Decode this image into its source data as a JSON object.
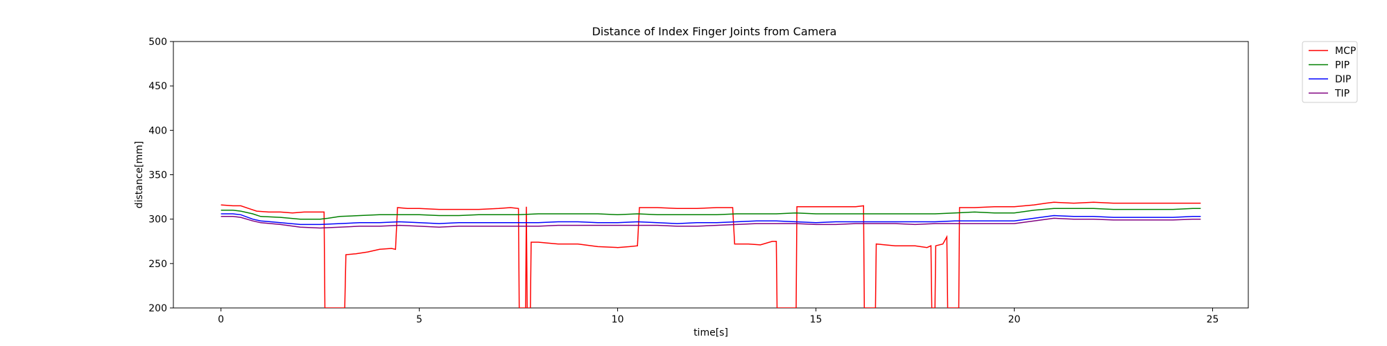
{
  "chart_data": {
    "type": "line",
    "title": "Distance of Index Finger Joints from Camera",
    "xlabel": "time[s]",
    "ylabel": "distance[mm]",
    "xlim": [
      -1.2,
      25.9
    ],
    "ylim": [
      200,
      500
    ],
    "xticks": [
      0,
      5,
      10,
      15,
      20,
      25
    ],
    "yticks": [
      200,
      250,
      300,
      350,
      400,
      450,
      500
    ],
    "grid": false,
    "legend_position": "outside-top-right",
    "series": [
      {
        "name": "MCP",
        "color": "#ff0000",
        "points": [
          [
            0,
            316
          ],
          [
            0.3,
            315
          ],
          [
            0.5,
            315
          ],
          [
            0.7,
            312
          ],
          [
            0.9,
            309
          ],
          [
            1.2,
            308
          ],
          [
            1.5,
            308
          ],
          [
            1.8,
            307
          ],
          [
            2.1,
            308
          ],
          [
            2.4,
            308
          ],
          [
            2.6,
            308
          ],
          [
            2.62,
            200
          ],
          [
            3.12,
            200
          ],
          [
            3.15,
            260
          ],
          [
            3.4,
            261
          ],
          [
            3.7,
            263
          ],
          [
            4.0,
            266
          ],
          [
            4.3,
            267
          ],
          [
            4.4,
            266
          ],
          [
            4.45,
            313
          ],
          [
            4.7,
            312
          ],
          [
            5.0,
            312
          ],
          [
            5.5,
            311
          ],
          [
            6.0,
            311
          ],
          [
            6.5,
            311
          ],
          [
            7.0,
            312
          ],
          [
            7.3,
            313
          ],
          [
            7.5,
            312
          ],
          [
            7.52,
            200
          ],
          [
            7.68,
            200
          ],
          [
            7.7,
            314
          ],
          [
            7.72,
            200
          ],
          [
            7.8,
            200
          ],
          [
            7.82,
            274
          ],
          [
            8.0,
            274
          ],
          [
            8.5,
            272
          ],
          [
            9.0,
            272
          ],
          [
            9.5,
            269
          ],
          [
            10.0,
            268
          ],
          [
            10.3,
            269
          ],
          [
            10.5,
            270
          ],
          [
            10.55,
            313
          ],
          [
            11.0,
            313
          ],
          [
            11.5,
            312
          ],
          [
            12.0,
            312
          ],
          [
            12.5,
            313
          ],
          [
            12.9,
            313
          ],
          [
            12.95,
            272
          ],
          [
            13.3,
            272
          ],
          [
            13.6,
            271
          ],
          [
            13.9,
            275
          ],
          [
            14.0,
            275
          ],
          [
            14.02,
            200
          ],
          [
            14.5,
            200
          ],
          [
            14.52,
            314
          ],
          [
            15.0,
            314
          ],
          [
            15.5,
            314
          ],
          [
            16.0,
            314
          ],
          [
            16.2,
            315
          ],
          [
            16.22,
            200
          ],
          [
            16.5,
            200
          ],
          [
            16.52,
            272
          ],
          [
            17.0,
            270
          ],
          [
            17.5,
            270
          ],
          [
            17.8,
            268
          ],
          [
            17.9,
            270
          ],
          [
            17.92,
            200
          ],
          [
            18.0,
            200
          ],
          [
            18.02,
            270
          ],
          [
            18.2,
            272
          ],
          [
            18.3,
            280
          ],
          [
            18.32,
            200
          ],
          [
            18.6,
            200
          ],
          [
            18.62,
            313
          ],
          [
            19.0,
            313
          ],
          [
            19.5,
            314
          ],
          [
            20.0,
            314
          ],
          [
            20.5,
            316
          ],
          [
            20.8,
            318
          ],
          [
            21.0,
            319
          ],
          [
            21.5,
            318
          ],
          [
            22.0,
            319
          ],
          [
            22.5,
            318
          ],
          [
            23.0,
            318
          ],
          [
            23.5,
            318
          ],
          [
            24.0,
            318
          ],
          [
            24.5,
            318
          ],
          [
            24.7,
            318
          ]
        ]
      },
      {
        "name": "PIP",
        "color": "#008000",
        "points": [
          [
            0,
            310
          ],
          [
            0.3,
            310
          ],
          [
            0.5,
            309
          ],
          [
            0.8,
            306
          ],
          [
            1.0,
            303
          ],
          [
            1.5,
            302
          ],
          [
            2.0,
            300
          ],
          [
            2.5,
            300
          ],
          [
            2.7,
            301
          ],
          [
            3.0,
            303
          ],
          [
            3.5,
            304
          ],
          [
            4.0,
            305
          ],
          [
            4.5,
            305
          ],
          [
            5.0,
            305
          ],
          [
            5.5,
            304
          ],
          [
            6.0,
            304
          ],
          [
            6.5,
            305
          ],
          [
            7.0,
            305
          ],
          [
            7.5,
            305
          ],
          [
            8.0,
            306
          ],
          [
            8.5,
            306
          ],
          [
            9.0,
            306
          ],
          [
            9.5,
            306
          ],
          [
            10.0,
            305
          ],
          [
            10.5,
            306
          ],
          [
            11.0,
            305
          ],
          [
            11.5,
            305
          ],
          [
            12.0,
            305
          ],
          [
            12.5,
            305
          ],
          [
            13.0,
            306
          ],
          [
            13.5,
            306
          ],
          [
            14.0,
            306
          ],
          [
            14.5,
            307
          ],
          [
            15.0,
            306
          ],
          [
            15.5,
            306
          ],
          [
            16.0,
            306
          ],
          [
            16.5,
            306
          ],
          [
            17.0,
            306
          ],
          [
            17.5,
            306
          ],
          [
            18.0,
            306
          ],
          [
            18.5,
            307
          ],
          [
            19.0,
            308
          ],
          [
            19.5,
            307
          ],
          [
            20.0,
            307
          ],
          [
            20.5,
            310
          ],
          [
            21.0,
            312
          ],
          [
            21.5,
            312
          ],
          [
            22.0,
            312
          ],
          [
            22.5,
            311
          ],
          [
            23.0,
            311
          ],
          [
            23.5,
            311
          ],
          [
            24.0,
            311
          ],
          [
            24.5,
            312
          ],
          [
            24.7,
            312
          ]
        ]
      },
      {
        "name": "DIP",
        "color": "#0000ff",
        "points": [
          [
            0,
            306
          ],
          [
            0.3,
            306
          ],
          [
            0.5,
            305
          ],
          [
            0.8,
            300
          ],
          [
            1.0,
            298
          ],
          [
            1.5,
            296
          ],
          [
            2.0,
            294
          ],
          [
            2.5,
            294
          ],
          [
            3.0,
            295
          ],
          [
            3.5,
            296
          ],
          [
            4.0,
            296
          ],
          [
            4.5,
            297
          ],
          [
            5.0,
            296
          ],
          [
            5.5,
            295
          ],
          [
            6.0,
            296
          ],
          [
            6.5,
            296
          ],
          [
            7.0,
            296
          ],
          [
            7.5,
            296
          ],
          [
            8.0,
            296
          ],
          [
            8.5,
            297
          ],
          [
            9.0,
            297
          ],
          [
            9.5,
            296
          ],
          [
            10.0,
            296
          ],
          [
            10.5,
            297
          ],
          [
            11.0,
            296
          ],
          [
            11.5,
            295
          ],
          [
            12.0,
            296
          ],
          [
            12.5,
            296
          ],
          [
            13.0,
            297
          ],
          [
            13.5,
            298
          ],
          [
            14.0,
            298
          ],
          [
            14.5,
            297
          ],
          [
            15.0,
            296
          ],
          [
            15.5,
            297
          ],
          [
            16.0,
            297
          ],
          [
            16.5,
            297
          ],
          [
            17.0,
            297
          ],
          [
            17.5,
            297
          ],
          [
            18.0,
            297
          ],
          [
            18.5,
            298
          ],
          [
            19.0,
            298
          ],
          [
            19.5,
            298
          ],
          [
            20.0,
            298
          ],
          [
            20.5,
            301
          ],
          [
            21.0,
            304
          ],
          [
            21.5,
            303
          ],
          [
            22.0,
            303
          ],
          [
            22.5,
            302
          ],
          [
            23.0,
            302
          ],
          [
            23.5,
            302
          ],
          [
            24.0,
            302
          ],
          [
            24.5,
            303
          ],
          [
            24.7,
            303
          ]
        ]
      },
      {
        "name": "TIP",
        "color": "#800080",
        "points": [
          [
            0,
            303
          ],
          [
            0.3,
            303
          ],
          [
            0.5,
            302
          ],
          [
            0.8,
            298
          ],
          [
            1.0,
            296
          ],
          [
            1.5,
            294
          ],
          [
            2.0,
            291
          ],
          [
            2.5,
            290
          ],
          [
            3.0,
            291
          ],
          [
            3.5,
            292
          ],
          [
            4.0,
            292
          ],
          [
            4.5,
            293
          ],
          [
            5.0,
            292
          ],
          [
            5.5,
            291
          ],
          [
            6.0,
            292
          ],
          [
            6.5,
            292
          ],
          [
            7.0,
            292
          ],
          [
            7.5,
            292
          ],
          [
            8.0,
            292
          ],
          [
            8.5,
            293
          ],
          [
            9.0,
            293
          ],
          [
            9.5,
            293
          ],
          [
            10.0,
            293
          ],
          [
            10.5,
            293
          ],
          [
            11.0,
            293
          ],
          [
            11.5,
            292
          ],
          [
            12.0,
            292
          ],
          [
            12.5,
            293
          ],
          [
            13.0,
            294
          ],
          [
            13.5,
            295
          ],
          [
            14.0,
            295
          ],
          [
            14.5,
            295
          ],
          [
            15.0,
            294
          ],
          [
            15.5,
            294
          ],
          [
            16.0,
            295
          ],
          [
            16.5,
            295
          ],
          [
            17.0,
            295
          ],
          [
            17.5,
            294
          ],
          [
            18.0,
            295
          ],
          [
            18.5,
            295
          ],
          [
            19.0,
            295
          ],
          [
            19.5,
            295
          ],
          [
            20.0,
            295
          ],
          [
            20.5,
            298
          ],
          [
            21.0,
            301
          ],
          [
            21.5,
            300
          ],
          [
            22.0,
            300
          ],
          [
            22.5,
            299
          ],
          [
            23.0,
            299
          ],
          [
            23.5,
            299
          ],
          [
            24.0,
            299
          ],
          [
            24.5,
            300
          ],
          [
            24.7,
            300
          ]
        ]
      }
    ]
  }
}
